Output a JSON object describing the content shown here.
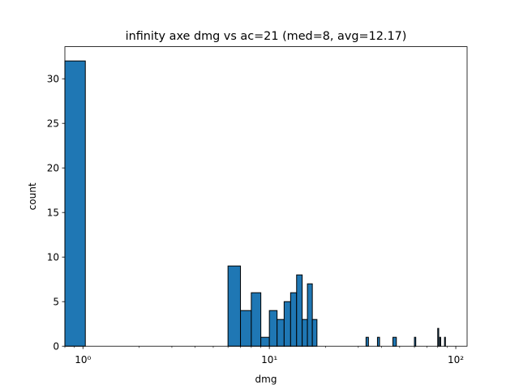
{
  "chart_data": {
    "type": "bar",
    "title": "infinity axe dmg vs ac=21 (med=8, avg=12.17)",
    "xlabel": "dmg",
    "ylabel": "count",
    "xscale": "log",
    "xlim": [
      0.8,
      115
    ],
    "ylim": [
      0,
      33.6
    ],
    "grid": false,
    "legend": "none",
    "bar_color": "#1f77b4",
    "edge_color": "#000000",
    "x_ticks": [
      {
        "value": 1,
        "label": "10⁰"
      },
      {
        "value": 10,
        "label": "10¹"
      },
      {
        "value": 100,
        "label": "10²"
      }
    ],
    "y_ticks": [
      0,
      5,
      10,
      15,
      20,
      25,
      30
    ],
    "bins": [
      {
        "x0": 0.0,
        "x1": 1.03,
        "count": 32
      },
      {
        "x0": 6.0,
        "x1": 7.0,
        "count": 9
      },
      {
        "x0": 7.0,
        "x1": 8.0,
        "count": 4
      },
      {
        "x0": 8.0,
        "x1": 9.0,
        "count": 6
      },
      {
        "x0": 9.0,
        "x1": 10.0,
        "count": 1
      },
      {
        "x0": 10.0,
        "x1": 11.0,
        "count": 4
      },
      {
        "x0": 11.0,
        "x1": 12.0,
        "count": 3
      },
      {
        "x0": 12.0,
        "x1": 13.0,
        "count": 5
      },
      {
        "x0": 13.0,
        "x1": 14.0,
        "count": 6
      },
      {
        "x0": 14.0,
        "x1": 15.0,
        "count": 8
      },
      {
        "x0": 15.0,
        "x1": 16.0,
        "count": 3
      },
      {
        "x0": 16.0,
        "x1": 17.0,
        "count": 7
      },
      {
        "x0": 17.0,
        "x1": 18.0,
        "count": 3
      },
      {
        "x0": 33.0,
        "x1": 34.0,
        "count": 1
      },
      {
        "x0": 38.0,
        "x1": 39.0,
        "count": 1
      },
      {
        "x0": 46.0,
        "x1": 48.0,
        "count": 1
      },
      {
        "x0": 60.0,
        "x1": 61.0,
        "count": 1
      },
      {
        "x0": 80.0,
        "x1": 81.0,
        "count": 2
      },
      {
        "x0": 82.0,
        "x1": 83.0,
        "count": 1
      },
      {
        "x0": 87.0,
        "x1": 88.0,
        "count": 1
      }
    ]
  }
}
